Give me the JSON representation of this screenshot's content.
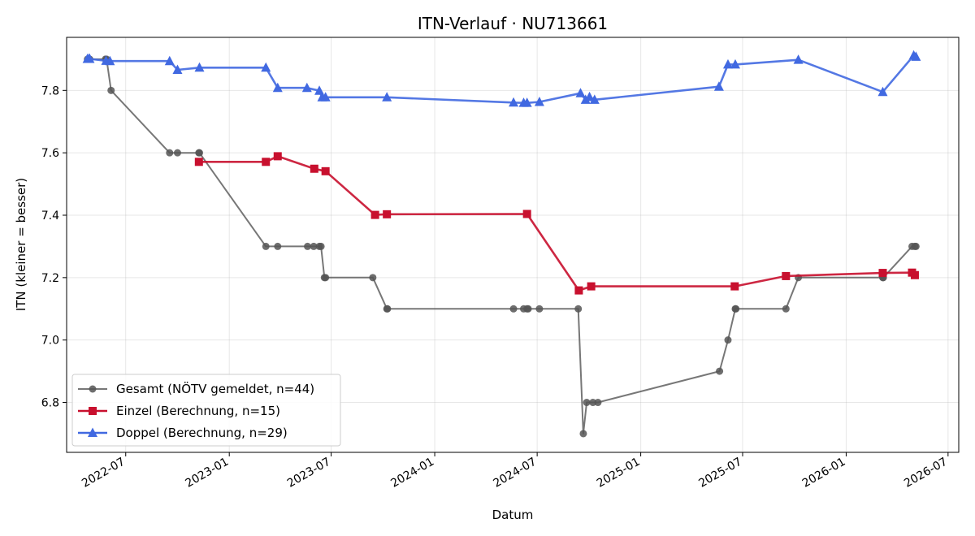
{
  "chart_data": {
    "type": "line",
    "title": "ITN-Verlauf · NU713661",
    "xlabel": "Datum",
    "ylabel": "ITN  (kleiner = besser)",
    "xlim": [
      "2022-03-18",
      "2026-07-20"
    ],
    "ylim": [
      6.64,
      7.97
    ],
    "x_ticks": [
      {
        "date": "2022-07-01",
        "label": "2022-07"
      },
      {
        "date": "2023-01-01",
        "label": "2023-01"
      },
      {
        "date": "2023-07-01",
        "label": "2023-07"
      },
      {
        "date": "2024-01-01",
        "label": "2024-01"
      },
      {
        "date": "2024-07-01",
        "label": "2024-07"
      },
      {
        "date": "2025-01-01",
        "label": "2025-01"
      },
      {
        "date": "2025-07-01",
        "label": "2025-07"
      },
      {
        "date": "2026-01-01",
        "label": "2026-01"
      },
      {
        "date": "2026-07-01",
        "label": "2026-07"
      }
    ],
    "y_ticks": [
      6.8,
      7.0,
      7.2,
      7.4,
      7.6,
      7.8
    ],
    "y_tick_labels": [
      "6.8",
      "7.0",
      "7.2",
      "7.4",
      "7.6",
      "7.8"
    ],
    "grid": true,
    "legend_position": "lower-left",
    "series": [
      {
        "name": "Gesamt (NÖTV gemeldet, n=44)",
        "color": "#555555",
        "marker": "circle",
        "points": [
          [
            "2022-04-24",
            7.9
          ],
          [
            "2022-04-27",
            7.9
          ],
          [
            "2022-04-28",
            7.9
          ],
          [
            "2022-05-26",
            7.9
          ],
          [
            "2022-05-28",
            7.9
          ],
          [
            "2022-06-05",
            7.8
          ],
          [
            "2022-09-17",
            7.6
          ],
          [
            "2022-10-01",
            7.6
          ],
          [
            "2022-11-08",
            7.6
          ],
          [
            "2022-11-09",
            7.6
          ],
          [
            "2023-03-07",
            7.3
          ],
          [
            "2023-03-28",
            7.3
          ],
          [
            "2023-05-20",
            7.3
          ],
          [
            "2023-05-31",
            7.3
          ],
          [
            "2023-06-10",
            7.3
          ],
          [
            "2023-06-13",
            7.3
          ],
          [
            "2023-06-19",
            7.2
          ],
          [
            "2023-06-21",
            7.2
          ],
          [
            "2023-09-13",
            7.2
          ],
          [
            "2023-10-08",
            7.1
          ],
          [
            "2023-10-09",
            7.1
          ],
          [
            "2024-05-20",
            7.1
          ],
          [
            "2024-06-07",
            7.1
          ],
          [
            "2024-06-13",
            7.1
          ],
          [
            "2024-06-15",
            7.1
          ],
          [
            "2024-07-05",
            7.1
          ],
          [
            "2024-09-12",
            7.1
          ],
          [
            "2024-09-21",
            6.7
          ],
          [
            "2024-09-27",
            6.8
          ],
          [
            "2024-10-08",
            6.8
          ],
          [
            "2024-10-17",
            6.8
          ],
          [
            "2025-05-21",
            6.9
          ],
          [
            "2025-06-05",
            7.0
          ],
          [
            "2025-06-18",
            7.1
          ],
          [
            "2025-06-19",
            7.1
          ],
          [
            "2025-09-16",
            7.1
          ],
          [
            "2025-10-08",
            7.2
          ],
          [
            "2026-03-07",
            7.2
          ],
          [
            "2026-03-08",
            7.2
          ],
          [
            "2026-04-28",
            7.3
          ],
          [
            "2026-05-03",
            7.3
          ],
          [
            "2026-05-05",
            7.3
          ]
        ]
      },
      {
        "name": "Einzel (Berechnung, n=15)",
        "color": "#c8102e",
        "marker": "square",
        "points": [
          [
            "2022-11-08",
            7.571
          ],
          [
            "2023-03-07",
            7.571
          ],
          [
            "2023-03-28",
            7.589
          ],
          [
            "2023-06-01",
            7.549
          ],
          [
            "2023-06-21",
            7.541
          ],
          [
            "2023-09-17",
            7.401
          ],
          [
            "2023-10-08",
            7.403
          ],
          [
            "2024-06-13",
            7.404
          ],
          [
            "2024-09-13",
            7.159
          ],
          [
            "2024-10-05",
            7.172
          ],
          [
            "2025-06-17",
            7.172
          ],
          [
            "2025-09-16",
            7.205
          ],
          [
            "2026-03-07",
            7.215
          ],
          [
            "2026-04-28",
            7.216
          ],
          [
            "2026-05-03",
            7.208
          ]
        ]
      },
      {
        "name": "Doppel (Berechnung, n=29)",
        "color": "#4169e1",
        "marker": "triangle",
        "points": [
          [
            "2022-04-24",
            7.901
          ],
          [
            "2022-04-27",
            7.902
          ],
          [
            "2022-04-28",
            7.901
          ],
          [
            "2022-05-27",
            7.895
          ],
          [
            "2022-06-03",
            7.894
          ],
          [
            "2022-09-17",
            7.894
          ],
          [
            "2022-10-01",
            7.866
          ],
          [
            "2022-11-09",
            7.873
          ],
          [
            "2023-03-07",
            7.873
          ],
          [
            "2023-03-28",
            7.808
          ],
          [
            "2023-05-19",
            7.808
          ],
          [
            "2023-06-10",
            7.799
          ],
          [
            "2023-06-15",
            7.778
          ],
          [
            "2023-06-21",
            7.778
          ],
          [
            "2023-10-08",
            7.778
          ],
          [
            "2024-05-20",
            7.761
          ],
          [
            "2024-06-07",
            7.76
          ],
          [
            "2024-06-13",
            7.76
          ],
          [
            "2024-07-05",
            7.763
          ],
          [
            "2024-09-16",
            7.791
          ],
          [
            "2024-09-25",
            7.77
          ],
          [
            "2024-10-02",
            7.779
          ],
          [
            "2024-10-11",
            7.77
          ],
          [
            "2025-05-20",
            7.812
          ],
          [
            "2025-06-05",
            7.883
          ],
          [
            "2025-06-18",
            7.883
          ],
          [
            "2025-10-08",
            7.898
          ],
          [
            "2026-03-07",
            7.795
          ],
          [
            "2026-05-01",
            7.912
          ],
          [
            "2026-05-05",
            7.908
          ]
        ]
      }
    ]
  }
}
